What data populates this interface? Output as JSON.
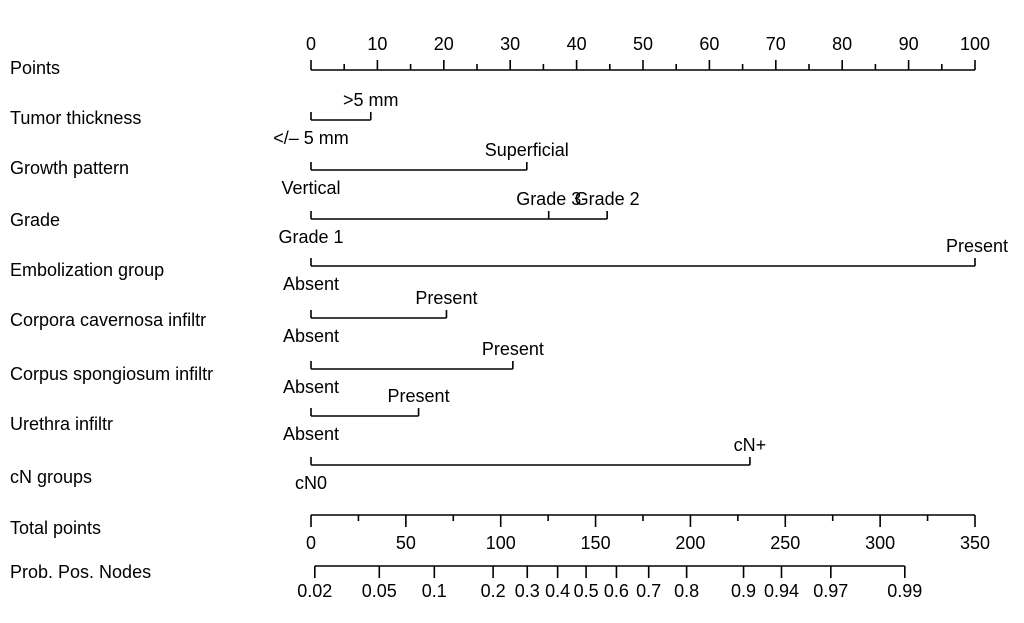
{
  "chart_data": {
    "type": "nomogram",
    "points_axis": {
      "label": "Points",
      "range": [
        0,
        100
      ],
      "ticks": [
        "0",
        "10",
        "20",
        "30",
        "40",
        "50",
        "60",
        "70",
        "80",
        "90",
        "100"
      ]
    },
    "variables": [
      {
        "name": "Tumor thickness",
        "levels": [
          {
            "label": "</– 5 mm",
            "points": 0
          },
          {
            "label": ">5 mm",
            "points": 9
          }
        ]
      },
      {
        "name": "Growth pattern",
        "levels": [
          {
            "label": "Vertical",
            "points": 0
          },
          {
            "label": "Superficial",
            "points": 32.5
          }
        ]
      },
      {
        "name": "Grade",
        "levels": [
          {
            "label": "Grade 1",
            "points": 0
          },
          {
            "label": "Grade 3",
            "points": 35.8
          },
          {
            "label": "Grade 2",
            "points": 44.6
          }
        ]
      },
      {
        "name": "Embolization group",
        "levels": [
          {
            "label": "Absent",
            "points": 0
          },
          {
            "label": "Present",
            "points": 100
          }
        ]
      },
      {
        "name": "Corpora cavernosa infiltr",
        "levels": [
          {
            "label": "Absent",
            "points": 0
          },
          {
            "label": "Present",
            "points": 20.4
          }
        ]
      },
      {
        "name": "Corpus spongiosum infiltr",
        "levels": [
          {
            "label": "Absent",
            "points": 0
          },
          {
            "label": "Present",
            "points": 30.4
          }
        ]
      },
      {
        "name": "Urethra infiltr",
        "levels": [
          {
            "label": "Absent",
            "points": 0
          },
          {
            "label": "Present",
            "points": 16.2
          }
        ]
      },
      {
        "name": "cN groups",
        "levels": [
          {
            "label": "cN0",
            "points": 0
          },
          {
            "label": "cN+",
            "points": 66.1
          }
        ]
      }
    ],
    "total_points_axis": {
      "label": "Total points",
      "range": [
        0,
        350
      ],
      "ticks": [
        "0",
        "50",
        "100",
        "150",
        "200",
        "250",
        "300",
        "350"
      ]
    },
    "probability_axis": {
      "label": "Prob. Pos. Nodes",
      "ticks": [
        {
          "label": "0.02",
          "total_points": 2
        },
        {
          "label": "0.05",
          "total_points": 36
        },
        {
          "label": "0.1",
          "total_points": 65
        },
        {
          "label": "0.2",
          "total_points": 96
        },
        {
          "label": "0.3",
          "total_points": 114
        },
        {
          "label": "0.4",
          "total_points": 130
        },
        {
          "label": "0.5",
          "total_points": 145
        },
        {
          "label": "0.6",
          "total_points": 161
        },
        {
          "label": "0.7",
          "total_points": 178
        },
        {
          "label": "0.8",
          "total_points": 198
        },
        {
          "label": "0.9",
          "total_points": 228
        },
        {
          "label": "0.94",
          "total_points": 248
        },
        {
          "label": "0.97",
          "total_points": 274
        },
        {
          "label": "0.99",
          "total_points": 313
        }
      ]
    }
  }
}
